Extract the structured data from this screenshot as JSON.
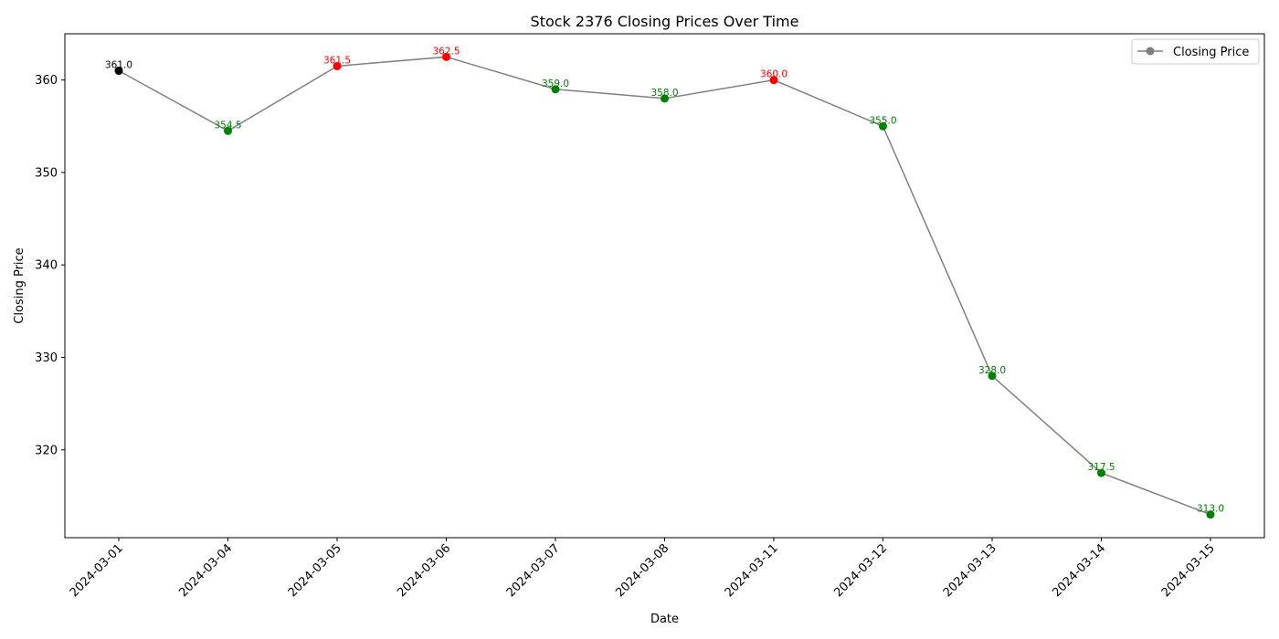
{
  "chart_data": {
    "type": "line",
    "title": "Stock 2376 Closing Prices Over Time",
    "xlabel": "Date",
    "ylabel": "Closing Price",
    "categories": [
      "2024-03-01",
      "2024-03-04",
      "2024-03-05",
      "2024-03-06",
      "2024-03-07",
      "2024-03-08",
      "2024-03-11",
      "2024-03-12",
      "2024-03-13",
      "2024-03-14",
      "2024-03-15"
    ],
    "series": [
      {
        "name": "Closing Price",
        "values": [
          361.0,
          354.5,
          361.5,
          362.5,
          359.0,
          358.0,
          360.0,
          355.0,
          328.0,
          317.5,
          313.0
        ],
        "line_color": "#808080"
      }
    ],
    "point_colors": [
      "#000000",
      "#008000",
      "#ff0000",
      "#ff0000",
      "#008000",
      "#008000",
      "#ff0000",
      "#008000",
      "#008000",
      "#008000",
      "#008000"
    ],
    "data_labels": [
      "361.0",
      "354.5",
      "361.5",
      "362.5",
      "359.0",
      "358.0",
      "360.0",
      "355.0",
      "328.0",
      "317.5",
      "313.0"
    ],
    "y_ticks": [
      320,
      330,
      340,
      350,
      360
    ],
    "ylim": [
      310.5,
      365.0
    ],
    "grid": false,
    "legend_position": "top-right",
    "legend": [
      "Closing Price"
    ]
  }
}
